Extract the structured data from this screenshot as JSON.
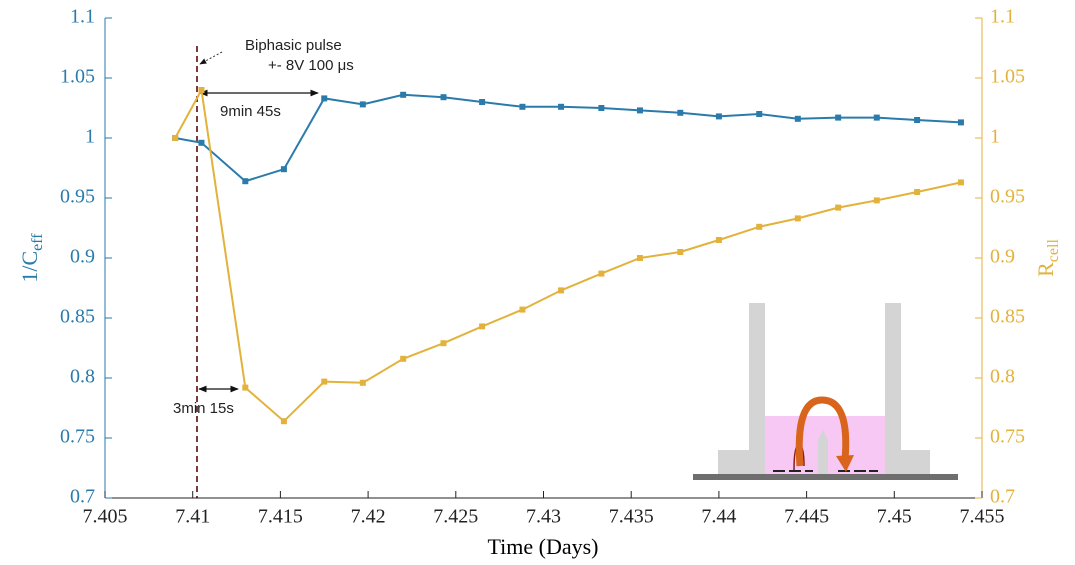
{
  "chart_data": {
    "type": "line",
    "xlabel": "Time (Days)",
    "ylabel_main": "1/C",
    "ylabel_sub": "eff",
    "y2label_main": "R",
    "y2label_sub": "cell",
    "annotations": [
      "Biphasic pulse",
      "+- 8V 100 μs",
      "9min 45s",
      "3min 15s"
    ],
    "x": [
      7.409,
      7.4105,
      7.413,
      7.4152,
      7.4175,
      7.4197,
      7.422,
      7.4243,
      7.4265,
      7.4288,
      7.431,
      7.4333,
      7.4355,
      7.4378,
      7.44,
      7.4423,
      7.4445,
      7.4468,
      7.449,
      7.4513,
      7.4538
    ],
    "series": [
      {
        "color": "#2a7bab",
        "values": [
          1.0,
          0.996,
          0.964,
          0.974,
          1.033,
          1.028,
          1.036,
          1.034,
          1.03,
          1.026,
          1.026,
          1.025,
          1.023,
          1.021,
          1.018,
          1.02,
          1.016,
          1.017,
          1.017,
          1.015,
          1.013
        ]
      },
      {
        "color": "#e3b23c",
        "axis": "y2",
        "values": [
          1.0,
          1.04,
          0.792,
          0.764,
          0.797,
          0.796,
          0.816,
          0.829,
          0.843,
          0.857,
          0.873,
          0.887,
          0.9,
          0.905,
          0.915,
          0.926,
          0.933,
          0.942,
          0.948,
          0.955,
          0.963
        ]
      }
    ],
    "xlim": [
      7.405,
      7.455
    ],
    "xticks": [
      7.405,
      7.41,
      7.415,
      7.42,
      7.425,
      7.43,
      7.435,
      7.44,
      7.445,
      7.45,
      7.455
    ],
    "ylim": [
      0.7,
      1.1
    ],
    "yticks": [
      0.7,
      0.75,
      0.8,
      0.85,
      0.9,
      0.95,
      1,
      1.05,
      1.1
    ],
    "y2lim": [
      0.7,
      1.1
    ],
    "y2ticks": [
      0.7,
      0.75,
      0.8,
      0.85,
      0.9,
      0.95,
      1,
      1.05,
      1.1
    ]
  }
}
